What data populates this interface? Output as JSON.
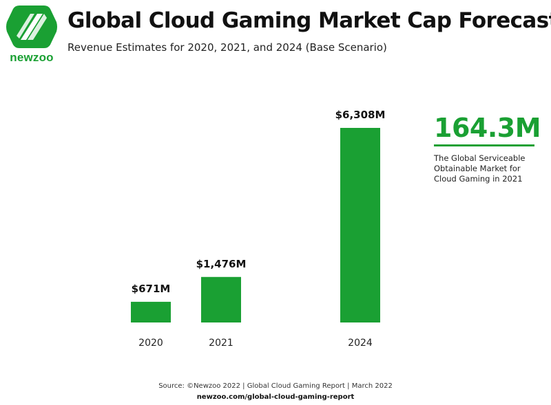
{
  "brand": {
    "name": "newzoo",
    "color": "#1aa033"
  },
  "chart_data": {
    "type": "bar",
    "title": "Global Cloud Gaming Market Cap Forecast",
    "subtitle": "Revenue Estimates for 2020, 2021, and 2024 (Base Scenario)",
    "categories": [
      "2020",
      "2021",
      "2024"
    ],
    "values": [
      671,
      1476,
      6308
    ],
    "value_labels": [
      "$671M",
      "$1,476M",
      "$6,308M"
    ],
    "unit": "USD millions",
    "xlabel": "",
    "ylabel": "",
    "ylim": [
      0,
      6308
    ],
    "grid": false,
    "bar_color": "#1aa033"
  },
  "callout": {
    "value": "164.3M",
    "description": "The Global Serviceable Obtainable Market for Cloud Gaming in 2021"
  },
  "footer": {
    "source": "Source: ©Newzoo 2022 | Global Cloud Gaming Report | March 2022",
    "url": "newzoo.com/global-cloud-gaming-report"
  }
}
